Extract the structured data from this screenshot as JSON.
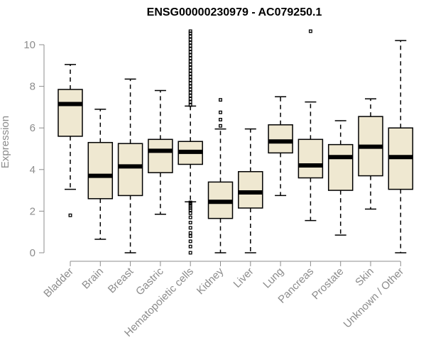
{
  "chart_data": {
    "type": "boxplot",
    "title": "ENSG00000230979 - AC079250.1",
    "xlabel": "",
    "ylabel": "Expression",
    "ylim": [
      0,
      10.7
    ],
    "yticks": [
      0,
      2,
      4,
      6,
      8,
      10
    ],
    "colors": {
      "box_fill": "#efe8d1",
      "stroke": "#000000",
      "axis": "#8c8c8c"
    },
    "categories": [
      "Bladder",
      "Brain",
      "Breast",
      "Gastric",
      "Hematopoietic cells",
      "Kidney",
      "Liver",
      "Lung",
      "Pancreas",
      "Prostate",
      "Skin",
      "Unknown / Other"
    ],
    "boxes": [
      {
        "label": "Bladder",
        "whislo": 3.05,
        "q1": 5.6,
        "med": 7.15,
        "q3": 7.85,
        "whishi": 9.05,
        "fliers": [
          1.8
        ]
      },
      {
        "label": "Brain",
        "whislo": 0.65,
        "q1": 2.6,
        "med": 3.7,
        "q3": 5.3,
        "whishi": 6.9,
        "fliers": []
      },
      {
        "label": "Breast",
        "whislo": 0.0,
        "q1": 2.75,
        "med": 4.15,
        "q3": 5.25,
        "whishi": 8.35,
        "fliers": []
      },
      {
        "label": "Gastric",
        "whislo": 1.85,
        "q1": 3.85,
        "med": 4.9,
        "q3": 5.45,
        "whishi": 7.8,
        "fliers": []
      },
      {
        "label": "Hematopoietic cells",
        "whislo": 2.45,
        "q1": 4.25,
        "med": 4.85,
        "q3": 5.35,
        "whishi": 7.05,
        "fliers": [
          0.0,
          0.3,
          0.55,
          0.8,
          0.95,
          1.2,
          1.45,
          1.7,
          1.9,
          2.05,
          2.15,
          2.25,
          2.35,
          2.42,
          7.1,
          7.25,
          7.4,
          7.55,
          7.7,
          7.85,
          8.0,
          8.15,
          8.3,
          8.45,
          8.6,
          8.75,
          8.9,
          9.05,
          9.2,
          9.35,
          9.5,
          9.65,
          9.8,
          9.95,
          10.1,
          10.25,
          10.4,
          10.55,
          10.65
        ]
      },
      {
        "label": "Kidney",
        "whislo": 0.0,
        "q1": 1.65,
        "med": 2.45,
        "q3": 3.4,
        "whishi": 5.95,
        "fliers": [
          6.1,
          6.4,
          6.75,
          7.35
        ]
      },
      {
        "label": "Liver",
        "whislo": 0.0,
        "q1": 2.15,
        "med": 2.9,
        "q3": 3.9,
        "whishi": 5.95,
        "fliers": []
      },
      {
        "label": "Lung",
        "whislo": 2.75,
        "q1": 4.8,
        "med": 5.35,
        "q3": 6.15,
        "whishi": 7.5,
        "fliers": []
      },
      {
        "label": "Pancreas",
        "whislo": 1.55,
        "q1": 3.6,
        "med": 4.2,
        "q3": 5.45,
        "whishi": 7.25,
        "fliers": [
          10.65
        ]
      },
      {
        "label": "Prostate",
        "whislo": 0.85,
        "q1": 3.0,
        "med": 4.6,
        "q3": 5.2,
        "whishi": 6.35,
        "fliers": []
      },
      {
        "label": "Skin",
        "whislo": 2.1,
        "q1": 3.7,
        "med": 5.1,
        "q3": 6.55,
        "whishi": 7.4,
        "fliers": []
      },
      {
        "label": "Unknown / Other",
        "whislo": 0.0,
        "q1": 3.05,
        "med": 4.6,
        "q3": 6.0,
        "whishi": 10.2,
        "fliers": []
      }
    ]
  }
}
